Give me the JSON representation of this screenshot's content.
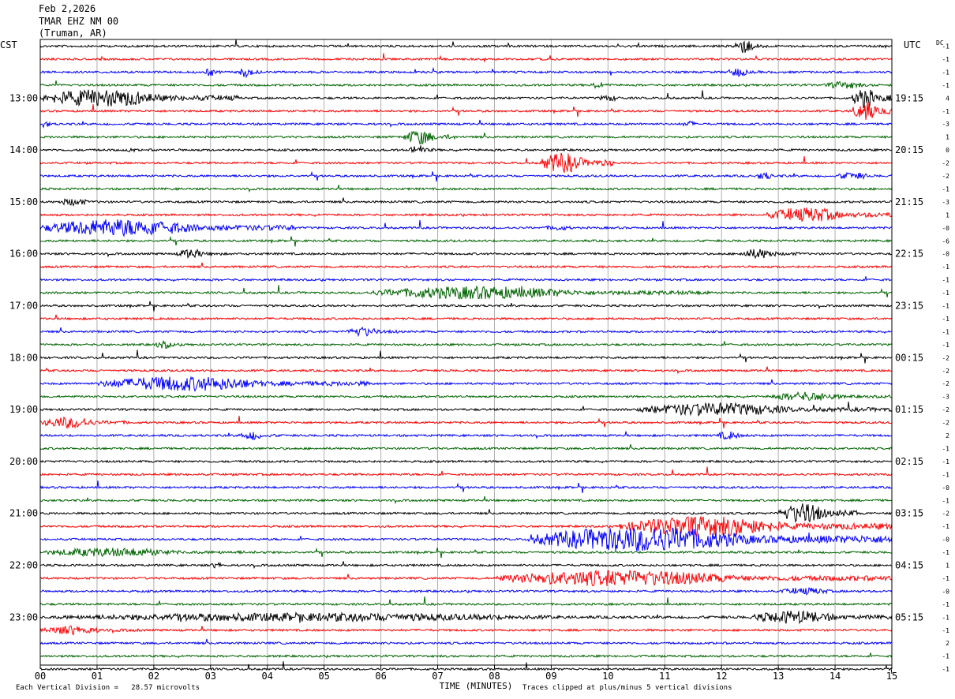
{
  "header": {
    "date": "Feb 2,2026",
    "station": "TMAR EHZ NM 00",
    "location": "(Truman, AR)"
  },
  "chart_data": {
    "type": "line",
    "title": "",
    "left_axis_label": "CST",
    "right_axis_label": "UTC",
    "dc_label": "DC",
    "xlabel": "TIME (MINUTES)",
    "xlim": [
      0,
      15
    ],
    "x_ticks": [
      "00",
      "01",
      "02",
      "03",
      "04",
      "05",
      "06",
      "07",
      "08",
      "09",
      "10",
      "11",
      "12",
      "13",
      "14",
      "15"
    ],
    "trace_colors": [
      "#000000",
      "#ff0000",
      "#0000ff",
      "#006400"
    ],
    "hour_labels_cst": [
      "13:00",
      "14:00",
      "15:00",
      "16:00",
      "17:00",
      "18:00",
      "19:00",
      "20:00",
      "21:00",
      "22:00",
      "23:00"
    ],
    "hour_labels_utc": [
      "19:15",
      "20:15",
      "21:15",
      "22:15",
      "23:15",
      "00:15",
      "01:15",
      "02:15",
      "03:15",
      "04:15",
      "05:15"
    ],
    "dc_offsets": [
      "-1",
      "-1",
      "-1",
      "-1",
      "4",
      "-1",
      "-3",
      "1",
      "0",
      "-2",
      "-2",
      "-1",
      "-3",
      "1",
      "-0",
      "-6",
      "-0",
      "-1",
      "-1",
      "-1",
      "-1",
      "-1",
      "-1",
      "-1",
      "-2",
      "-2",
      "-2",
      "-3",
      "-2",
      "-2",
      "2",
      "-1",
      "-1",
      "-1",
      "-0",
      "-1",
      "-2",
      "-1",
      "-0",
      "-1",
      "1",
      "-1",
      "-0",
      "-1",
      "-1",
      "-1",
      "2",
      "-1",
      "-1"
    ],
    "num_traces": 49,
    "first_labeled_trace": 4,
    "grid": true,
    "events": [
      {
        "trace": 0,
        "start": 12.2,
        "end": 12.8,
        "amp": 3
      },
      {
        "trace": 2,
        "start": 2.9,
        "end": 3.2,
        "amp": 1.8
      },
      {
        "trace": 2,
        "start": 3.5,
        "end": 3.9,
        "amp": 2.2
      },
      {
        "trace": 2,
        "start": 12.1,
        "end": 12.7,
        "amp": 1.8
      },
      {
        "trace": 3,
        "start": 13.8,
        "end": 15.0,
        "amp": 1.5
      },
      {
        "trace": 3,
        "start": 9.7,
        "end": 10.1,
        "amp": 1.7
      },
      {
        "trace": 4,
        "start": 0.0,
        "end": 3.5,
        "amp": 3.5
      },
      {
        "trace": 4,
        "start": 14.3,
        "end": 15.0,
        "amp": 4
      },
      {
        "trace": 4,
        "start": 9.8,
        "end": 10.5,
        "amp": 1.2
      },
      {
        "trace": 5,
        "start": 14.3,
        "end": 15.0,
        "amp": 4
      },
      {
        "trace": 6,
        "start": 0.0,
        "end": 0.3,
        "amp": 1.5
      },
      {
        "trace": 6,
        "start": 11.3,
        "end": 11.7,
        "amp": 1.3
      },
      {
        "trace": 7,
        "start": 6.4,
        "end": 7.3,
        "amp": 3
      },
      {
        "trace": 8,
        "start": 6.5,
        "end": 7.0,
        "amp": 2
      },
      {
        "trace": 8,
        "start": 1.5,
        "end": 1.8,
        "amp": 1
      },
      {
        "trace": 9,
        "start": 8.8,
        "end": 10.1,
        "amp": 4
      },
      {
        "trace": 10,
        "start": 12.6,
        "end": 13.1,
        "amp": 1.6
      },
      {
        "trace": 10,
        "start": 14.0,
        "end": 15.0,
        "amp": 1.5
      },
      {
        "trace": 12,
        "start": 0.3,
        "end": 1.2,
        "amp": 1.5
      },
      {
        "trace": 13,
        "start": 12.8,
        "end": 15.0,
        "amp": 3
      },
      {
        "trace": 14,
        "start": 0.0,
        "end": 4.5,
        "amp": 3.5
      },
      {
        "trace": 14,
        "start": 8.8,
        "end": 9.8,
        "amp": 1
      },
      {
        "trace": 16,
        "start": 2.4,
        "end": 3.2,
        "amp": 2
      },
      {
        "trace": 16,
        "start": 12.3,
        "end": 13.4,
        "amp": 2
      },
      {
        "trace": 19,
        "start": 5.8,
        "end": 11.8,
        "amp": 2.6
      },
      {
        "trace": 22,
        "start": 5.4,
        "end": 6.3,
        "amp": 2
      },
      {
        "trace": 23,
        "start": 2.0,
        "end": 2.6,
        "amp": 1.5
      },
      {
        "trace": 26,
        "start": 1.0,
        "end": 5.8,
        "amp": 3
      },
      {
        "trace": 27,
        "start": 12.8,
        "end": 15.0,
        "amp": 1.8
      },
      {
        "trace": 28,
        "start": 10.5,
        "end": 15.0,
        "amp": 2.6
      },
      {
        "trace": 29,
        "start": 0.0,
        "end": 1.6,
        "amp": 2.3
      },
      {
        "trace": 30,
        "start": 3.5,
        "end": 4.2,
        "amp": 1.8
      },
      {
        "trace": 30,
        "start": 11.9,
        "end": 12.6,
        "amp": 1.7
      },
      {
        "trace": 36,
        "start": 13.0,
        "end": 14.4,
        "amp": 4
      },
      {
        "trace": 37,
        "start": 10.2,
        "end": 15.0,
        "amp": 4
      },
      {
        "trace": 38,
        "start": 8.6,
        "end": 15.0,
        "amp": 5
      },
      {
        "trace": 39,
        "start": 0.0,
        "end": 4.0,
        "amp": 1.8
      },
      {
        "trace": 40,
        "start": 3.0,
        "end": 3.4,
        "amp": 1.2
      },
      {
        "trace": 41,
        "start": 8.0,
        "end": 15.0,
        "amp": 3.2
      },
      {
        "trace": 42,
        "start": 13.0,
        "end": 14.5,
        "amp": 1.5
      },
      {
        "trace": 44,
        "start": 0.0,
        "end": 15.0,
        "amp": 1.7
      },
      {
        "trace": 45,
        "start": 0.0,
        "end": 1.8,
        "amp": 1.8
      },
      {
        "trace": 44,
        "start": 12.5,
        "end": 15.0,
        "amp": 2.6
      }
    ]
  },
  "footer": {
    "scale_note": "Each Vertical Division =   28.57 microvolts",
    "clip_note": "Traces clipped at plus/minus 5 vertical divisions"
  }
}
